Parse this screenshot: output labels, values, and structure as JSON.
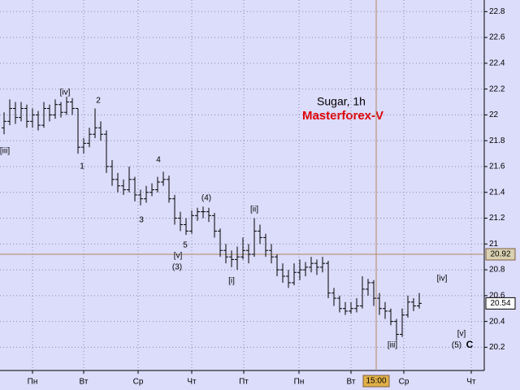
{
  "chart_data": {
    "type": "ohlc",
    "title": "Sugar, 1h",
    "subtitle": "Masterforex-V",
    "ylim": [
      20.02,
      22.89
    ],
    "yticks": [
      20.2,
      20.4,
      20.6,
      20.8,
      21,
      21.2,
      21.4,
      21.6,
      21.8,
      22,
      22.2,
      22.4,
      22.6,
      22.8
    ],
    "grid": true,
    "categories": [
      "Пн",
      "Вт",
      "Ср",
      "Чт",
      "Пт",
      "Пн",
      "Вт",
      "Ср",
      "Чт"
    ],
    "color": "#000000",
    "cursor_price": 20.92,
    "cursor_time": "15:00",
    "last_price": 20.54,
    "annotations": [
      "[iii]",
      "[iv]",
      "2",
      "1",
      "4",
      "3",
      "(4)",
      "5",
      "[v]",
      "(3)",
      "[ii]",
      "[i]",
      "[iv]",
      "[iii]",
      "[v]",
      "(5)",
      "C"
    ],
    "ohlc": [
      [
        21.9,
        22.02,
        21.85,
        21.95
      ],
      [
        21.95,
        22.12,
        21.92,
        22.05
      ],
      [
        22.05,
        22.1,
        21.93,
        21.98
      ],
      [
        21.98,
        22.1,
        21.95,
        22.05
      ],
      [
        22.05,
        22.08,
        21.9,
        21.95
      ],
      [
        21.95,
        22.05,
        21.9,
        22.0
      ],
      [
        22.0,
        22.03,
        21.88,
        21.92
      ],
      [
        21.92,
        22.1,
        21.9,
        22.05
      ],
      [
        22.05,
        22.08,
        21.95,
        22.0
      ],
      [
        22.0,
        22.12,
        21.97,
        22.08
      ],
      [
        22.08,
        22.1,
        21.98,
        22.02
      ],
      [
        22.02,
        22.14,
        22.0,
        22.1
      ],
      [
        22.1,
        22.13,
        22.0,
        22.05
      ],
      [
        22.05,
        22.05,
        21.7,
        21.75
      ],
      [
        21.75,
        21.82,
        21.7,
        21.78
      ],
      [
        21.78,
        21.9,
        21.75,
        21.85
      ],
      [
        21.85,
        22.05,
        21.82,
        21.9
      ],
      [
        21.9,
        21.95,
        21.8,
        21.85
      ],
      [
        21.85,
        21.88,
        21.55,
        21.6
      ],
      [
        21.6,
        21.65,
        21.45,
        21.5
      ],
      [
        21.5,
        21.55,
        21.4,
        21.45
      ],
      [
        21.45,
        21.5,
        21.38,
        21.42
      ],
      [
        21.42,
        21.6,
        21.4,
        21.5
      ],
      [
        21.5,
        21.52,
        21.33,
        21.38
      ],
      [
        21.38,
        21.42,
        21.3,
        21.35
      ],
      [
        21.35,
        21.45,
        21.32,
        21.4
      ],
      [
        21.4,
        21.47,
        21.37,
        21.42
      ],
      [
        21.42,
        21.52,
        21.4,
        21.48
      ],
      [
        21.48,
        21.56,
        21.45,
        21.5
      ],
      [
        21.5,
        21.53,
        21.32,
        21.35
      ],
      [
        21.35,
        21.38,
        21.15,
        21.2
      ],
      [
        21.2,
        21.25,
        21.1,
        21.15
      ],
      [
        21.15,
        21.2,
        21.07,
        21.1
      ],
      [
        21.1,
        21.26,
        21.08,
        21.22
      ],
      [
        21.22,
        21.28,
        21.18,
        21.25
      ],
      [
        21.25,
        21.29,
        21.2,
        21.25
      ],
      [
        21.25,
        21.28,
        21.17,
        21.22
      ],
      [
        21.22,
        21.24,
        21.05,
        21.1
      ],
      [
        21.1,
        21.12,
        20.9,
        20.95
      ],
      [
        20.95,
        21.0,
        20.85,
        20.9
      ],
      [
        20.9,
        20.95,
        20.82,
        20.88
      ],
      [
        20.88,
        20.98,
        20.8,
        20.9
      ],
      [
        20.9,
        21.05,
        20.88,
        20.95
      ],
      [
        20.95,
        21.0,
        20.85,
        20.92
      ],
      [
        20.92,
        21.2,
        20.9,
        21.1
      ],
      [
        21.1,
        21.15,
        21.0,
        21.05
      ],
      [
        21.05,
        21.08,
        20.9,
        20.95
      ],
      [
        20.95,
        21.0,
        20.85,
        20.9
      ],
      [
        20.9,
        20.92,
        20.75,
        20.8
      ],
      [
        20.8,
        20.85,
        20.7,
        20.75
      ],
      [
        20.75,
        20.8,
        20.66,
        20.7
      ],
      [
        20.7,
        20.85,
        20.68,
        20.78
      ],
      [
        20.78,
        20.88,
        20.72,
        20.8
      ],
      [
        20.8,
        20.86,
        20.75,
        20.82
      ],
      [
        20.82,
        20.9,
        20.78,
        20.85
      ],
      [
        20.85,
        20.88,
        20.76,
        20.82
      ],
      [
        20.82,
        20.9,
        20.78,
        20.85
      ],
      [
        20.85,
        20.87,
        20.58,
        20.62
      ],
      [
        20.62,
        20.66,
        20.52,
        20.58
      ],
      [
        20.58,
        20.6,
        20.47,
        20.5
      ],
      [
        20.5,
        20.55,
        20.45,
        20.48
      ],
      [
        20.48,
        20.55,
        20.46,
        20.5
      ],
      [
        20.5,
        20.58,
        20.47,
        20.52
      ],
      [
        20.52,
        20.75,
        20.5,
        20.65
      ],
      [
        20.65,
        20.73,
        20.6,
        20.7
      ],
      [
        20.7,
        20.72,
        20.52,
        20.58
      ],
      [
        20.58,
        20.62,
        20.45,
        20.5
      ],
      [
        20.5,
        20.55,
        20.42,
        20.48
      ],
      [
        20.48,
        20.5,
        20.37,
        20.4
      ],
      [
        20.4,
        20.42,
        20.25,
        20.3
      ],
      [
        20.3,
        20.5,
        20.28,
        20.45
      ],
      [
        20.45,
        20.6,
        20.43,
        20.55
      ],
      [
        20.55,
        20.58,
        20.48,
        20.52
      ],
      [
        20.52,
        20.62,
        20.5,
        20.54
      ]
    ]
  }
}
